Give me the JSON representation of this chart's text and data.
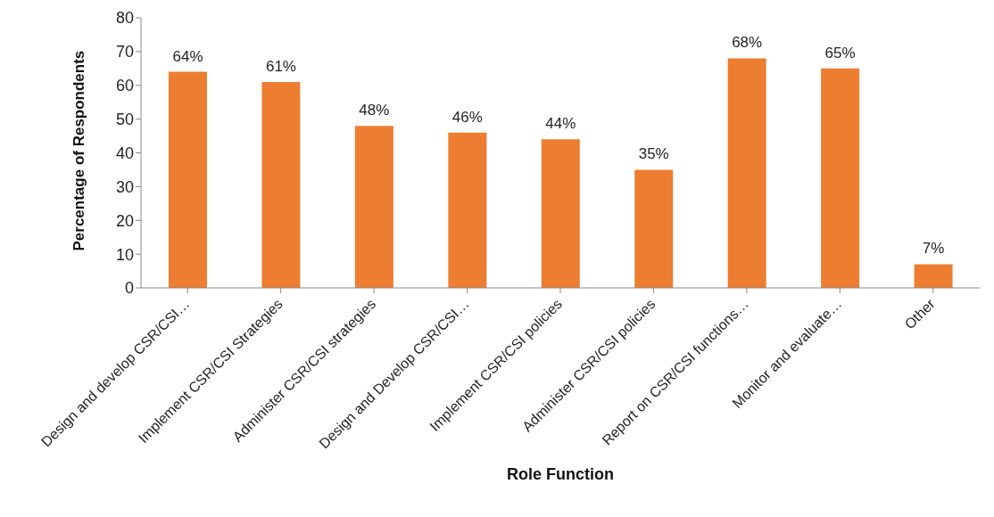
{
  "chart_data": {
    "type": "bar",
    "xlabel": "Role Function",
    "ylabel": "Percentage of Respondents",
    "categories": [
      "Design and develop CSR/CSI…",
      "Implement CSR/CSI Strategies",
      "Administer CSR/CSI strategies",
      "Design and Develop CSR/CSI…",
      "Implement CSR/CSI policies",
      "Administer CSR/CSI policies",
      "Report on CSR/CSI functions…",
      "Monitor and evaluate…",
      "Other"
    ],
    "values": [
      64,
      61,
      48,
      46,
      44,
      35,
      68,
      65,
      7
    ],
    "value_labels": [
      "64%",
      "61%",
      "48%",
      "46%",
      "44%",
      "35%",
      "68%",
      "65%",
      "7%"
    ],
    "color": "#ed7d31",
    "ylim": [
      0,
      80
    ],
    "yticks": [
      0,
      10,
      20,
      30,
      40,
      50,
      60,
      70,
      80
    ],
    "grid": false
  }
}
